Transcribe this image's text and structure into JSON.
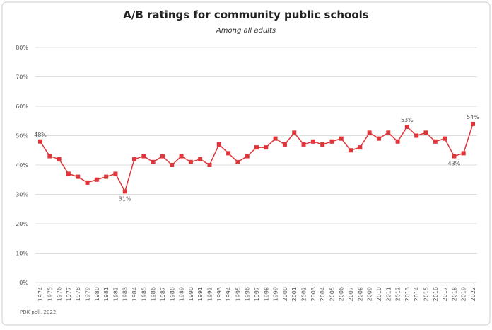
{
  "chart_data": {
    "type": "line",
    "title": "A/B ratings for community public schools",
    "subtitle": "Among all adults",
    "source": "PDK poll, 2022",
    "categories": [
      "1974",
      "1975",
      "1976",
      "1977",
      "1978",
      "1979",
      "1980",
      "1981",
      "1982",
      "1983",
      "1984",
      "1985",
      "1986",
      "1987",
      "1988",
      "1989",
      "1990",
      "1991",
      "1992",
      "1993",
      "1994",
      "1995",
      "1996",
      "1997",
      "1998",
      "1999",
      "2000",
      "2001",
      "2002",
      "2003",
      "2004",
      "2005",
      "2006",
      "2007",
      "2008",
      "2009",
      "2010",
      "2011",
      "2012",
      "2013",
      "2014",
      "2015",
      "2016",
      "2017",
      "2018",
      "2019",
      "2022"
    ],
    "series": [
      {
        "name": "A/B ratings",
        "color": "#e0353b",
        "values": [
          48,
          43,
          42,
          37,
          36,
          34,
          35,
          36,
          37,
          31,
          42,
          43,
          41,
          43,
          40,
          43,
          41,
          42,
          40,
          47,
          44,
          41,
          43,
          46,
          46,
          49,
          47,
          51,
          47,
          48,
          47,
          48,
          49,
          45,
          46,
          51,
          49,
          51,
          48,
          53,
          50,
          51,
          48,
          49,
          43,
          44,
          54
        ],
        "value_labels": [
          "48%",
          null,
          null,
          null,
          null,
          null,
          null,
          null,
          null,
          "31%",
          null,
          null,
          null,
          null,
          null,
          null,
          null,
          null,
          null,
          null,
          null,
          null,
          null,
          null,
          null,
          null,
          null,
          null,
          null,
          null,
          null,
          null,
          null,
          null,
          null,
          null,
          null,
          null,
          null,
          "53%",
          null,
          null,
          null,
          null,
          "43%",
          null,
          "54%"
        ]
      }
    ],
    "ylim": [
      0,
      80
    ],
    "yticks": [
      {
        "value": 0,
        "label": "0%"
      },
      {
        "value": 10,
        "label": "10%"
      },
      {
        "value": 20,
        "label": "20%"
      },
      {
        "value": 30,
        "label": "30%"
      },
      {
        "value": 40,
        "label": "40%"
      },
      {
        "value": 50,
        "label": "50%"
      },
      {
        "value": 60,
        "label": "60%"
      },
      {
        "value": 70,
        "label": "70%"
      },
      {
        "value": 80,
        "label": "80%"
      }
    ],
    "grid": true
  }
}
